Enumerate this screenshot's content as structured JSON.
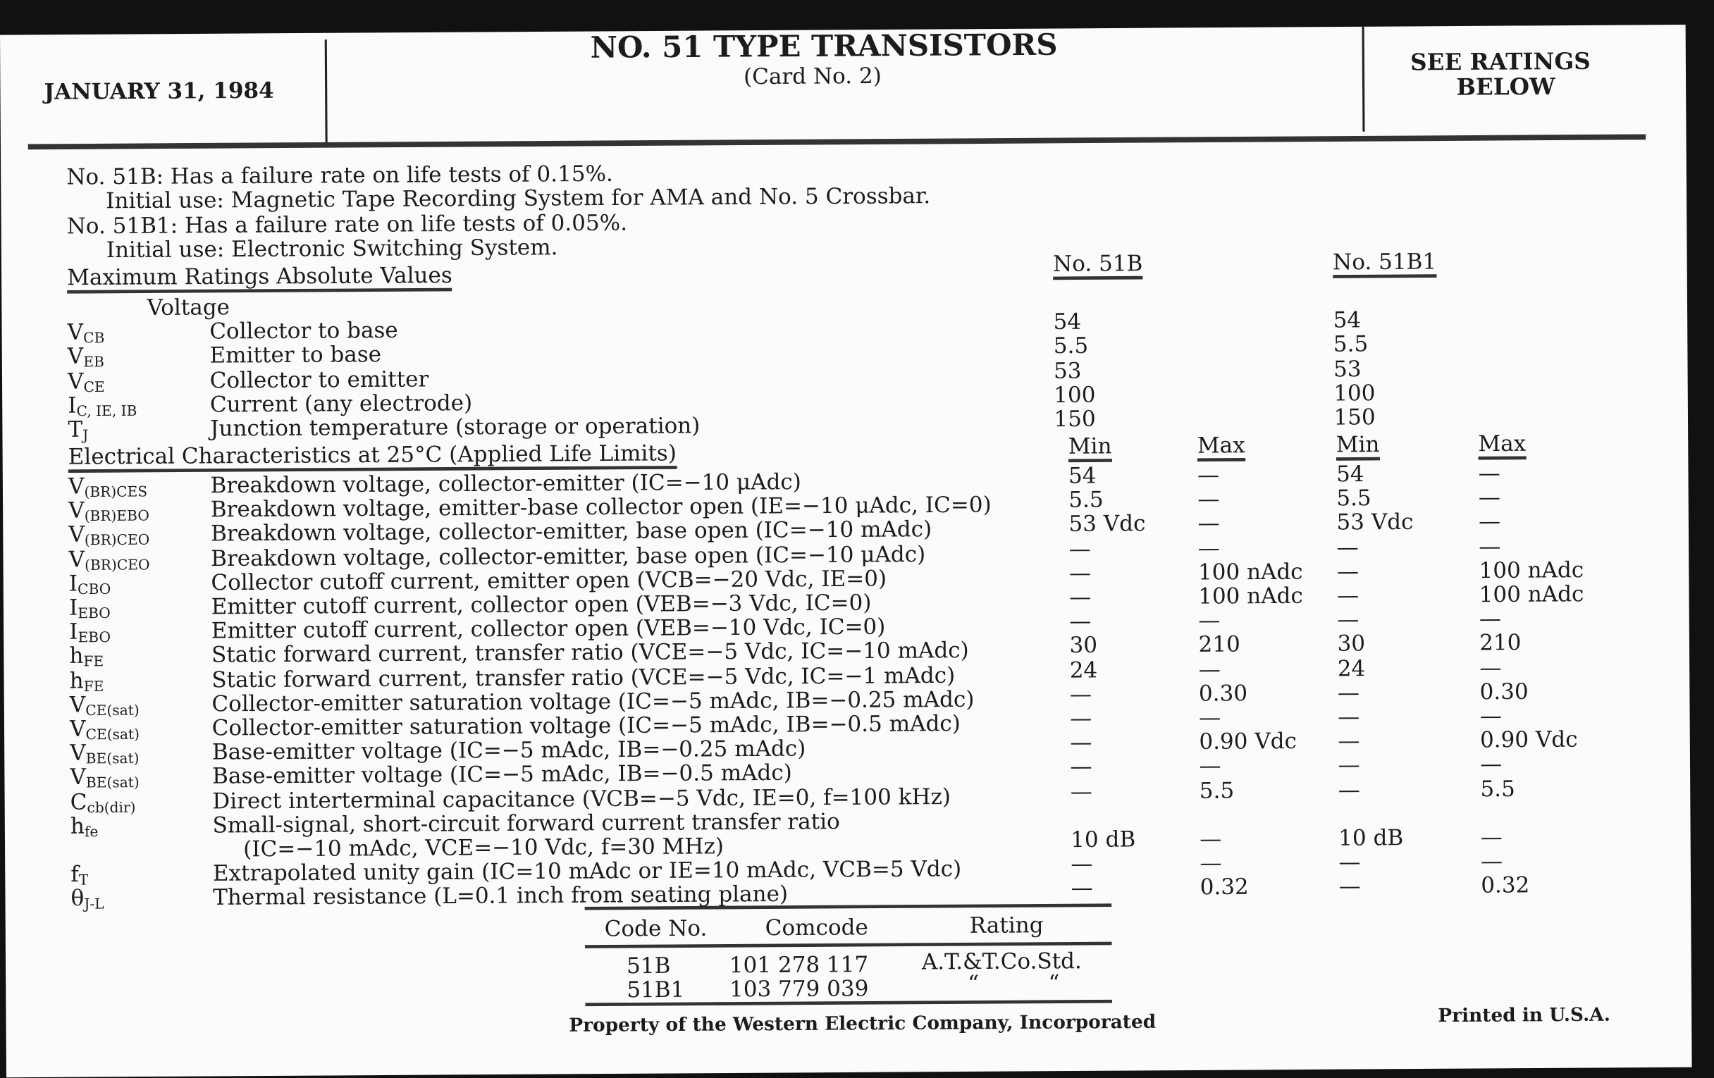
{
  "header": {
    "date": "JANUARY 31, 1984",
    "title": "NO. 51 TYPE TRANSISTORS",
    "subtitle": "(Card No. 2)",
    "ratings_line1": "SEE RATINGS",
    "ratings_line2": "BELOW"
  },
  "intro": [
    "No. 51B: Has a failure rate on life tests of 0.15%.",
    "Initial use: Magnetic Tape Recording System for AMA and No. 5 Crossbar.",
    "No. 51B1: Has a failure rate on life tests of 0.05%.",
    "Initial use: Electronic Switching System."
  ],
  "max_ratings": {
    "heading": "Maximum Ratings Absolute Values",
    "col_51b": "No. 51B",
    "col_51b1": "No. 51B1",
    "group": "Voltage",
    "rows": [
      {
        "sym": "V",
        "sub": "CB",
        "desc": "Collector to base",
        "v51b": "54",
        "v51b1": "54"
      },
      {
        "sym": "V",
        "sub": "EB",
        "desc": "Emitter to base",
        "v51b": "5.5",
        "v51b1": "5.5"
      },
      {
        "sym": "V",
        "sub": "CE",
        "desc": "Collector to emitter",
        "v51b": "53",
        "v51b1": "53"
      },
      {
        "sym": "I",
        "sub": "C, IE, IB",
        "desc": "Current (any electrode)",
        "v51b": "100",
        "v51b1": "100"
      },
      {
        "sym": "T",
        "sub": "J",
        "desc": "Junction temperature (storage or operation)",
        "v51b": "150",
        "v51b1": "150"
      }
    ]
  },
  "electrical": {
    "heading": "Electrical Characteristics at 25°C (Applied Life Limits)",
    "min_label": "Min",
    "max_label": "Max",
    "rows": [
      {
        "sym": "V",
        "sub": "(BR)CES",
        "desc": "Breakdown voltage, collector-emitter (IC=−10 μAdc)",
        "min1": "54",
        "max1": "—",
        "min2": "54",
        "max2": "—"
      },
      {
        "sym": "V",
        "sub": "(BR)EBO",
        "desc": "Breakdown voltage, emitter-base collector open (IE=−10 μAdc, IC=0)",
        "min1": "5.5",
        "max1": "—",
        "min2": "5.5",
        "max2": "—"
      },
      {
        "sym": "V",
        "sub": "(BR)CEO",
        "desc": "Breakdown voltage, collector-emitter, base open (IC=−10 mAdc)",
        "min1": "53 Vdc",
        "max1": "—",
        "min2": "53 Vdc",
        "max2": "—"
      },
      {
        "sym": "V",
        "sub": "(BR)CEO",
        "desc": "Breakdown voltage, collector-emitter, base open (IC=−10 μAdc)",
        "min1": "—",
        "max1": "—",
        "min2": "—",
        "max2": "—"
      },
      {
        "sym": "I",
        "sub": "CBO",
        "desc": "Collector cutoff current, emitter open (VCB=−20 Vdc, IE=0)",
        "min1": "—",
        "max1": "100 nAdc",
        "min2": "—",
        "max2": "100 nAdc"
      },
      {
        "sym": "I",
        "sub": "EBO",
        "desc": "Emitter cutoff current, collector open (VEB=−3 Vdc, IC=0)",
        "min1": "—",
        "max1": "100 nAdc",
        "min2": "—",
        "max2": "100 nAdc"
      },
      {
        "sym": "I",
        "sub": "EBO",
        "desc": "Emitter cutoff current, collector open (VEB=−10 Vdc, IC=0)",
        "min1": "—",
        "max1": "—",
        "min2": "—",
        "max2": "—"
      },
      {
        "sym": "h",
        "sub": "FE",
        "desc": "Static forward current, transfer ratio (VCE=−5 Vdc, IC=−10 mAdc)",
        "min1": "30",
        "max1": "210",
        "min2": "30",
        "max2": "210"
      },
      {
        "sym": "h",
        "sub": "FE",
        "desc": "Static forward current, transfer ratio (VCE=−5 Vdc, IC=−1 mAdc)",
        "min1": "24",
        "max1": "—",
        "min2": "24",
        "max2": "—"
      },
      {
        "sym": "V",
        "sub": "CE(sat)",
        "desc": "Collector-emitter saturation voltage (IC=−5 mAdc, IB=−0.25 mAdc)",
        "min1": "—",
        "max1": "0.30",
        "min2": "—",
        "max2": "0.30"
      },
      {
        "sym": "V",
        "sub": "CE(sat)",
        "desc": "Collector-emitter saturation voltage (IC=−5 mAdc, IB=−0.5 mAdc)",
        "min1": "—",
        "max1": "—",
        "min2": "—",
        "max2": "—"
      },
      {
        "sym": "V",
        "sub": "BE(sat)",
        "desc": "Base-emitter voltage (IC=−5 mAdc, IB=−0.25 mAdc)",
        "min1": "—",
        "max1": "0.90 Vdc",
        "min2": "—",
        "max2": "0.90 Vdc"
      },
      {
        "sym": "V",
        "sub": "BE(sat)",
        "desc": "Base-emitter voltage (IC=−5 mAdc, IB=−0.5 mAdc)",
        "min1": "—",
        "max1": "—",
        "min2": "—",
        "max2": "—"
      },
      {
        "sym": "C",
        "sub": "cb(dir)",
        "desc": "Direct interterminal capacitance (VCB=−5 Vdc, IE=0, f=100 kHz)",
        "min1": "—",
        "max1": "5.5",
        "min2": "—",
        "max2": "5.5"
      },
      {
        "sym": "h",
        "sub": "fe",
        "desc": "Small-signal, short-circuit forward current transfer ratio",
        "desc2": "(IC=−10 mAdc, VCE=−10 Vdc, f=30 MHz)",
        "min1": "10 dB",
        "max1": "—",
        "min2": "10 dB",
        "max2": "—"
      },
      {
        "sym": "f",
        "sub": "T",
        "desc": "Extrapolated unity gain (IC=10 mAdc or IE=10 mAdc, VCB=5 Vdc)",
        "min1": "—",
        "max1": "—",
        "min2": "—",
        "max2": "—"
      },
      {
        "sym": "θ",
        "sub": "J-L",
        "desc": "Thermal resistance (L=0.1 inch from seating plane)",
        "min1": "—",
        "max1": "0.32",
        "min2": "—",
        "max2": "0.32"
      }
    ]
  },
  "codes": {
    "headers": [
      "Code No.",
      "Comcode",
      "Rating"
    ],
    "rows": [
      [
        "51B",
        "101 278 117",
        "A.T.&T.Co.Std."
      ],
      [
        "51B1",
        "103 779 039",
        "“          “"
      ]
    ]
  },
  "footer": {
    "property": "Property of the Western Electric Company, Incorporated",
    "printed": "Printed in U.S.A."
  }
}
